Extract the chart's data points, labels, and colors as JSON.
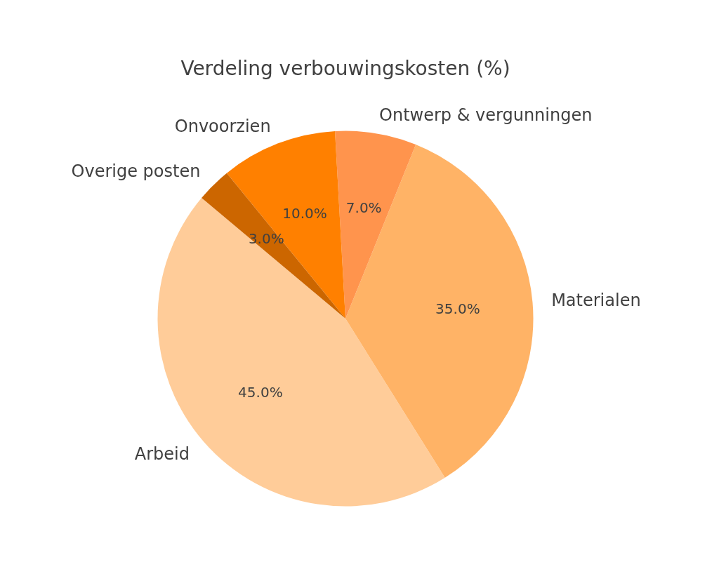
{
  "chart_data": {
    "type": "pie",
    "title": "Verdeling verbouwingskosten (%)",
    "categories": [
      "Arbeid",
      "Materialen",
      "Ontwerp & vergunningen",
      "Onvoorzien",
      "Overige posten"
    ],
    "values": [
      45,
      35,
      7,
      10,
      3
    ],
    "colors": [
      "#ffcc99",
      "#ffb366",
      "#ff944d",
      "#ff8000",
      "#cc6600"
    ],
    "value_labels": [
      "45.0%",
      "35.0%",
      "7.0%",
      "10.0%",
      "3.0%"
    ]
  }
}
